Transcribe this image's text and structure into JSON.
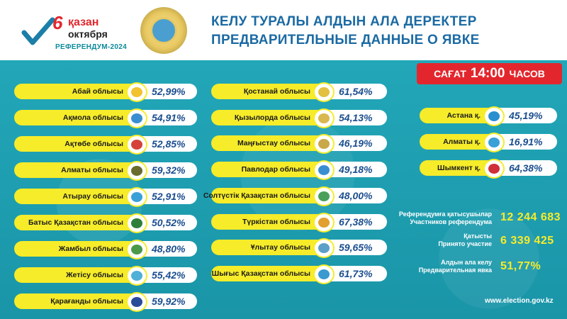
{
  "header": {
    "logo": {
      "day": "6",
      "month_kz": "қазан",
      "month_ru": "октября",
      "referendum": "РЕФЕРЕНДУМ-2024"
    },
    "emblem_icon": "referendum-emblem",
    "title_kz": "КЕЛУ ТУРАЛЫ АЛДЫН АЛА ДЕРЕКТЕР",
    "title_ru": "ПРЕДВАРИТЕЛЬНЫЕ ДАННЫЕ О ЯВКЕ"
  },
  "time_badge": {
    "prefix": "САҒАТ",
    "time": "14:00",
    "suffix": "ЧАСОВ"
  },
  "regions_col1": [
    {
      "name": "Абай облысы",
      "pct": "52,99%",
      "icon": "abai-emblem",
      "color": "#f2c230"
    },
    {
      "name": "Ақмола облысы",
      "pct": "54,91%",
      "icon": "akmola-emblem",
      "color": "#3a8fd1"
    },
    {
      "name": "Ақтөбе облысы",
      "pct": "52,85%",
      "icon": "aktobe-emblem",
      "color": "#d4423a"
    },
    {
      "name": "Алматы облысы",
      "pct": "59,32%",
      "icon": "almaty-region-emblem",
      "color": "#6b6b2e"
    },
    {
      "name": "Атырау облысы",
      "pct": "52,91%",
      "icon": "atyrau-emblem",
      "color": "#3ca0d8"
    },
    {
      "name": "Батыс Қазақстан облысы",
      "pct": "50,52%",
      "icon": "west-kz-emblem",
      "color": "#2f7f3a"
    },
    {
      "name": "Жамбыл облысы",
      "pct": "48,80%",
      "icon": "zhambyl-emblem",
      "color": "#4a9a4a"
    },
    {
      "name": "Жетісу облысы",
      "pct": "55,42%",
      "icon": "zhetysu-emblem",
      "color": "#4fb0d8"
    },
    {
      "name": "Қарағанды облысы",
      "pct": "59,92%",
      "icon": "karaganda-emblem",
      "color": "#2a4a9a"
    }
  ],
  "regions_col2": [
    {
      "name": "Қостанай облысы",
      "pct": "61,54%",
      "icon": "kostanay-emblem",
      "color": "#e2c040"
    },
    {
      "name": "Қызылорда облысы",
      "pct": "54,13%",
      "icon": "kyzylorda-emblem",
      "color": "#d9b850"
    },
    {
      "name": "Маңғыстау облысы",
      "pct": "46,19%",
      "icon": "mangystau-emblem",
      "color": "#c9a84a"
    },
    {
      "name": "Павлодар облысы",
      "pct": "49,18%",
      "icon": "pavlodar-emblem",
      "color": "#3a8fd1"
    },
    {
      "name": "Солтүстік Қазақстан облысы",
      "pct": "48,00%",
      "icon": "north-kz-emblem",
      "color": "#4aa05a"
    },
    {
      "name": "Түркістан облысы",
      "pct": "67,38%",
      "icon": "turkistan-emblem",
      "color": "#e2a030"
    },
    {
      "name": "Ұлытау облысы",
      "pct": "59,65%",
      "icon": "ulytau-emblem",
      "color": "#5aa0c8"
    },
    {
      "name": "Шығыс Қазақстан облысы",
      "pct": "61,73%",
      "icon": "east-kz-emblem",
      "color": "#3a9ad0"
    }
  ],
  "cities": [
    {
      "name": "Астана қ.",
      "pct": "45,19%",
      "icon": "astana-emblem",
      "color": "#2a8fd0"
    },
    {
      "name": "Алматы қ.",
      "pct": "16,91%",
      "icon": "almaty-city-emblem",
      "color": "#3aa0d8"
    },
    {
      "name": "Шымкент қ.",
      "pct": "64,38%",
      "icon": "shymkent-emblem",
      "color": "#d0303a"
    }
  ],
  "stats": {
    "participants": {
      "label_kz": "Референдумға қатысушылар",
      "label_ru": "Участников референдума",
      "value": "12 244 683"
    },
    "turnout": {
      "label_kz": "Қатысты",
      "label_ru": "Принято участие",
      "value": "6 339 425"
    },
    "prelim": {
      "label_kz": "Алдын ала келу",
      "label_ru": "Предварительная явка",
      "value": "51,77%"
    }
  },
  "website": "www.election.gov.kz",
  "colors": {
    "teal": "#1e9fb0",
    "yellow": "#f6ec2a",
    "red": "#e3262d",
    "title_blue": "#1b6aa3",
    "pct_blue": "#1b4e8f"
  }
}
